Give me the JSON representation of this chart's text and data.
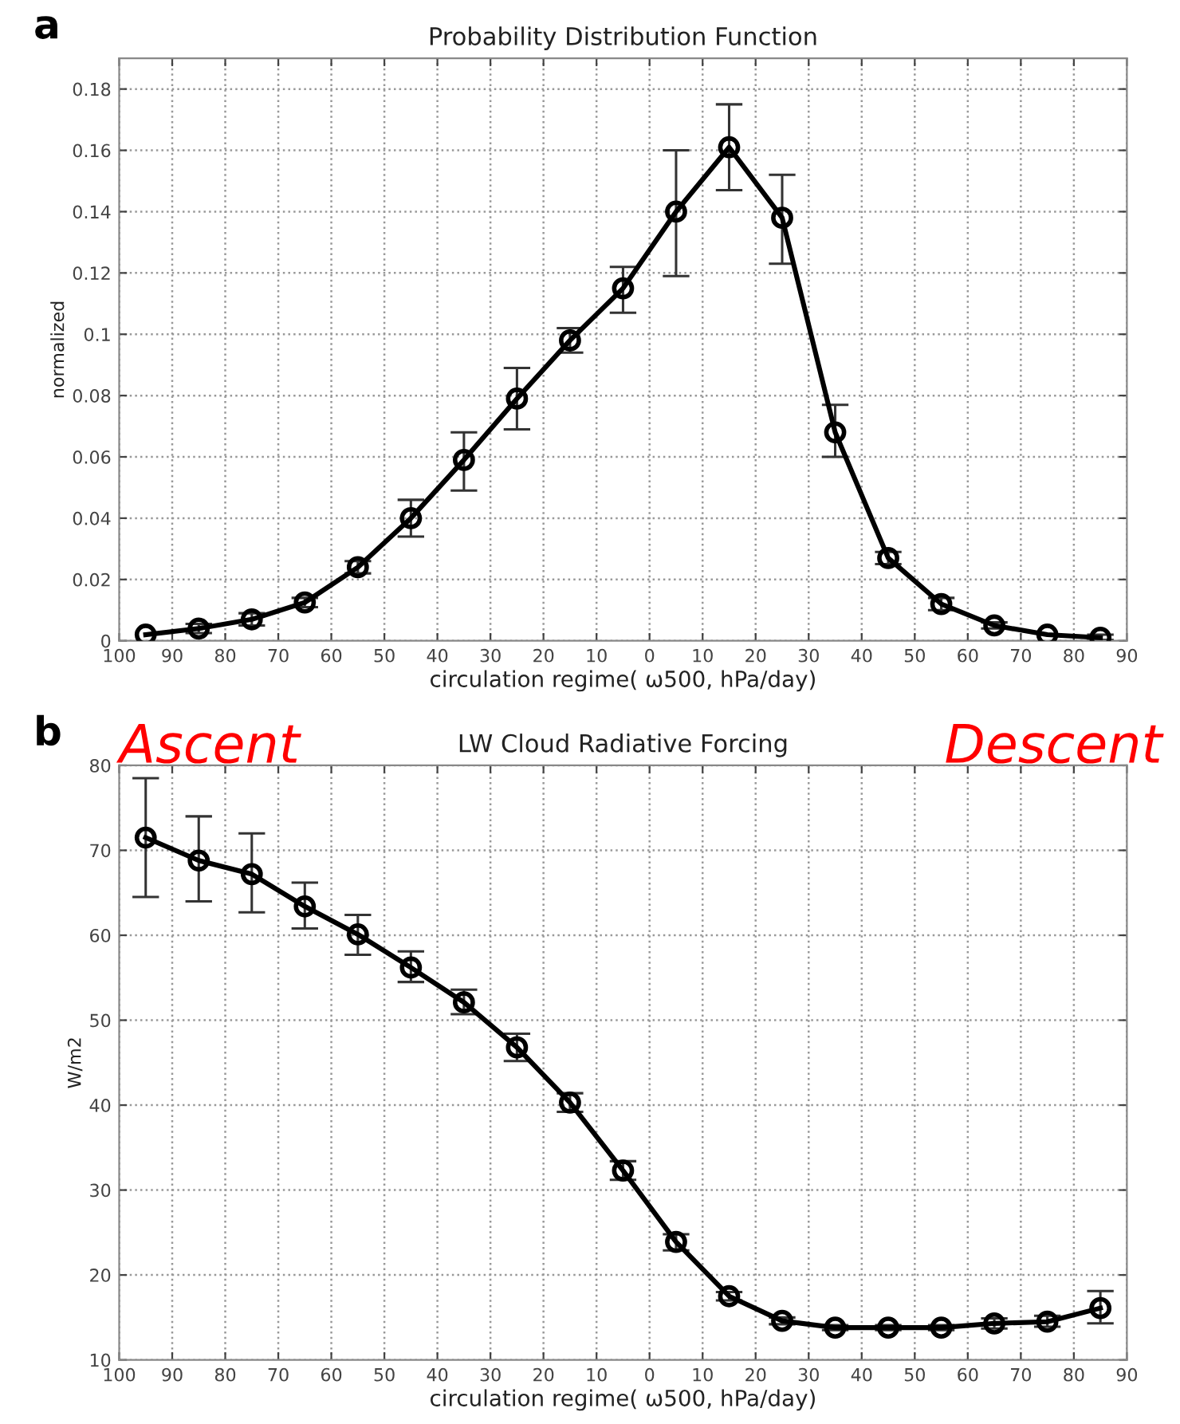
{
  "chart_data": [
    {
      "type": "line",
      "title": "Probability Distribution Function",
      "xlabel": "circulation regime( ω500, hPa/day)",
      "ylabel": "normalized",
      "annotations": [
        "a",
        "Ascent",
        "Descent"
      ],
      "x": [
        -95,
        -85,
        -75,
        -65,
        -55,
        -45,
        -35,
        -25,
        -15,
        -5,
        5,
        15,
        25,
        35,
        45,
        55,
        65,
        75,
        85
      ],
      "series": [
        {
          "color": "#000000",
          "values": [
            0.002,
            0.004,
            0.007,
            0.0125,
            0.024,
            0.04,
            0.059,
            0.079,
            0.098,
            0.115,
            0.14,
            0.161,
            0.138,
            0.068,
            0.027,
            0.012,
            0.005,
            0.002,
            0.001
          ],
          "errors": [
            null,
            [
              0.0025,
              0.0055
            ],
            [
              0.005,
              0.009
            ],
            [
              0.011,
              0.014
            ],
            [
              0.022,
              0.026
            ],
            [
              0.034,
              0.046
            ],
            [
              0.049,
              0.068
            ],
            [
              0.069,
              0.089
            ],
            [
              0.094,
              0.102
            ],
            [
              0.107,
              0.122
            ],
            [
              0.119,
              0.16
            ],
            [
              0.147,
              0.175
            ],
            [
              0.123,
              0.152
            ],
            [
              0.06,
              0.077
            ],
            [
              0.025,
              0.029
            ],
            [
              0.01,
              0.014
            ],
            [
              0.004,
              0.006
            ],
            null,
            [
              0.0003,
              0.002
            ]
          ]
        }
      ],
      "xlim": [
        -100,
        90
      ],
      "ylim": [
        0,
        0.19
      ],
      "xticks": [
        {
          "value": -100,
          "label": "100"
        },
        {
          "value": -90,
          "label": "90"
        },
        {
          "value": -80,
          "label": "80"
        },
        {
          "value": -70,
          "label": "70"
        },
        {
          "value": -60,
          "label": "60"
        },
        {
          "value": -50,
          "label": "50"
        },
        {
          "value": -40,
          "label": "40"
        },
        {
          "value": -30,
          "label": "30"
        },
        {
          "value": -20,
          "label": "20"
        },
        {
          "value": -10,
          "label": "10"
        },
        0,
        10,
        20,
        30,
        40,
        50,
        60,
        70,
        80,
        90
      ],
      "yticks": [
        0,
        0.02,
        0.04,
        0.06,
        0.08,
        {
          "value": 0.1,
          "label": "0.1"
        },
        0.12,
        0.14,
        0.16,
        0.18
      ],
      "grid": true,
      "marker": "circle",
      "line_style": "solid",
      "legend": false
    },
    {
      "type": "line",
      "title": "LW Cloud Radiative Forcing",
      "xlabel": "circulation regime( ω500, hPa/day)",
      "ylabel": "W/m2",
      "annotations": [
        "b"
      ],
      "x": [
        -95,
        -85,
        -75,
        -65,
        -55,
        -45,
        -35,
        -25,
        -15,
        -5,
        5,
        15,
        25,
        35,
        45,
        55,
        65,
        75,
        85
      ],
      "series": [
        {
          "color": "#000000",
          "values": [
            71.5,
            68.8,
            67.2,
            63.4,
            60.1,
            56.2,
            52.1,
            46.8,
            40.3,
            32.3,
            23.9,
            17.5,
            14.6,
            13.8,
            13.8,
            13.8,
            14.3,
            14.5,
            16.1
          ],
          "errors": [
            [
              64.5,
              78.5
            ],
            [
              64,
              74
            ],
            [
              62.7,
              72
            ],
            [
              60.8,
              66.2
            ],
            [
              57.7,
              62.4
            ],
            [
              54.5,
              58.1
            ],
            [
              50.7,
              53.6
            ],
            [
              45.2,
              48.4
            ],
            [
              39.2,
              41.4
            ],
            [
              31.2,
              33.4
            ],
            [
              22.9,
              24.8
            ],
            [
              17,
              18
            ],
            [
              14.2,
              15
            ],
            [
              13.5,
              14.1
            ],
            [
              13.5,
              14.1
            ],
            [
              13.5,
              14.1
            ],
            [
              13.7,
              14.9
            ],
            [
              13.9,
              15.2
            ],
            [
              14.3,
              18.1
            ]
          ]
        }
      ],
      "xlim": [
        -100,
        90
      ],
      "ylim": [
        10,
        80
      ],
      "xticks": [
        {
          "value": -100,
          "label": "100"
        },
        {
          "value": -90,
          "label": "90"
        },
        {
          "value": -80,
          "label": "80"
        },
        {
          "value": -70,
          "label": "70"
        },
        {
          "value": -60,
          "label": "60"
        },
        {
          "value": -50,
          "label": "50"
        },
        {
          "value": -40,
          "label": "40"
        },
        {
          "value": -30,
          "label": "30"
        },
        {
          "value": -20,
          "label": "20"
        },
        {
          "value": -10,
          "label": "10"
        },
        0,
        10,
        20,
        30,
        40,
        50,
        60,
        70,
        80,
        90
      ],
      "yticks": [
        10,
        20,
        30,
        40,
        50,
        60,
        70,
        80
      ],
      "grid": true,
      "marker": "circle",
      "line_style": "solid",
      "legend": false
    }
  ]
}
